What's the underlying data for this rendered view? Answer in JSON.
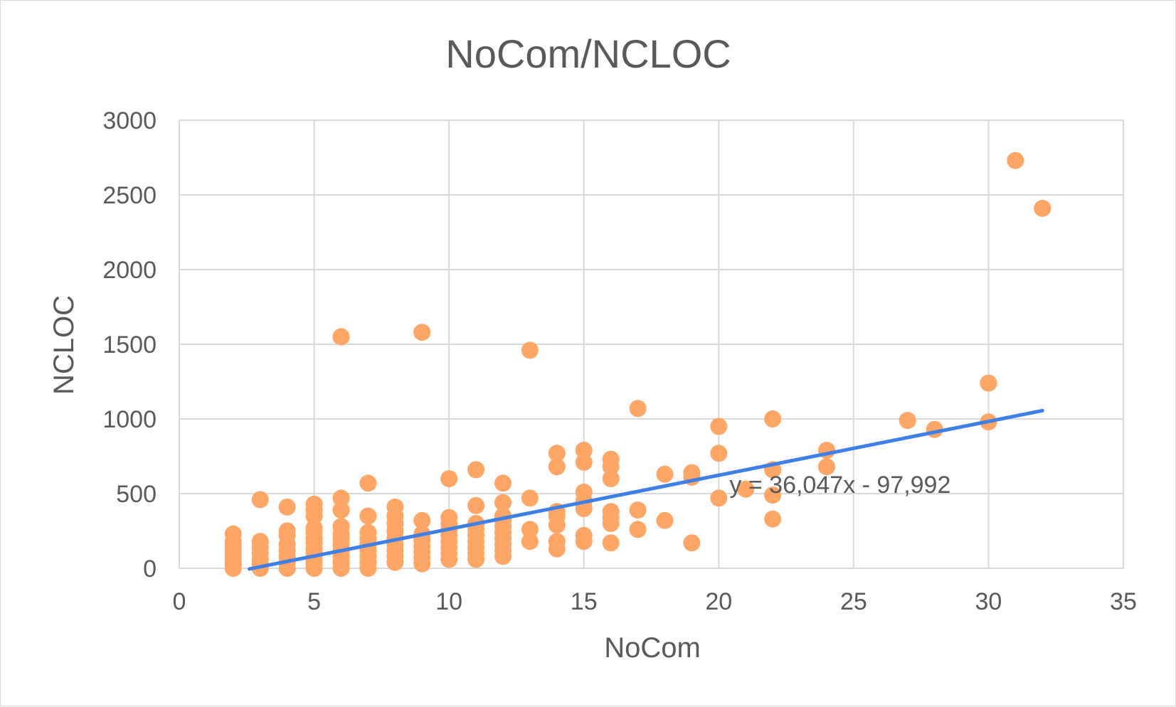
{
  "chart_data": {
    "type": "scatter",
    "title": "NoCom/NCLOC",
    "xlabel": "NoCom",
    "ylabel": "NCLOC",
    "xlim": [
      0,
      35
    ],
    "ylim": [
      0,
      3000
    ],
    "x_ticks": [
      "0",
      "5",
      "10",
      "15",
      "20",
      "25",
      "30",
      "35"
    ],
    "y_ticks": [
      "0",
      "500",
      "1000",
      "1500",
      "2000",
      "2500",
      "3000"
    ],
    "grid": true,
    "legend": "none",
    "colors": {
      "points": "#FFA565",
      "trendline": "#3F7FE8",
      "grid": "#D9D9D9",
      "text": "#595959"
    },
    "series": [
      {
        "points": [
          [
            2,
            0
          ],
          [
            2,
            20
          ],
          [
            2,
            40
          ],
          [
            2,
            60
          ],
          [
            2,
            80
          ],
          [
            2,
            100
          ],
          [
            2,
            120
          ],
          [
            2,
            150
          ],
          [
            2,
            180
          ],
          [
            2,
            230
          ],
          [
            3,
            0
          ],
          [
            3,
            30
          ],
          [
            3,
            60
          ],
          [
            3,
            100
          ],
          [
            3,
            140
          ],
          [
            3,
            180
          ],
          [
            3,
            460
          ],
          [
            4,
            0
          ],
          [
            4,
            40
          ],
          [
            4,
            80
          ],
          [
            4,
            120
          ],
          [
            4,
            160
          ],
          [
            4,
            220
          ],
          [
            4,
            250
          ],
          [
            4,
            410
          ],
          [
            5,
            0
          ],
          [
            5,
            30
          ],
          [
            5,
            60
          ],
          [
            5,
            100
          ],
          [
            5,
            130
          ],
          [
            5,
            170
          ],
          [
            5,
            200
          ],
          [
            5,
            240
          ],
          [
            5,
            270
          ],
          [
            5,
            350
          ],
          [
            5,
            390
          ],
          [
            5,
            430
          ],
          [
            6,
            0
          ],
          [
            6,
            40
          ],
          [
            6,
            80
          ],
          [
            6,
            120
          ],
          [
            6,
            160
          ],
          [
            6,
            200
          ],
          [
            6,
            230
          ],
          [
            6,
            280
          ],
          [
            6,
            390
          ],
          [
            6,
            470
          ],
          [
            6,
            1550
          ],
          [
            7,
            0
          ],
          [
            7,
            40
          ],
          [
            7,
            80
          ],
          [
            7,
            120
          ],
          [
            7,
            160
          ],
          [
            7,
            200
          ],
          [
            7,
            240
          ],
          [
            7,
            350
          ],
          [
            7,
            570
          ],
          [
            8,
            40
          ],
          [
            8,
            80
          ],
          [
            8,
            120
          ],
          [
            8,
            160
          ],
          [
            8,
            200
          ],
          [
            8,
            250
          ],
          [
            8,
            300
          ],
          [
            8,
            350
          ],
          [
            8,
            410
          ],
          [
            9,
            30
          ],
          [
            9,
            70
          ],
          [
            9,
            110
          ],
          [
            9,
            150
          ],
          [
            9,
            190
          ],
          [
            9,
            230
          ],
          [
            9,
            320
          ],
          [
            9,
            1580
          ],
          [
            10,
            60
          ],
          [
            10,
            100
          ],
          [
            10,
            140
          ],
          [
            10,
            180
          ],
          [
            10,
            220
          ],
          [
            10,
            260
          ],
          [
            10,
            300
          ],
          [
            10,
            340
          ],
          [
            10,
            600
          ],
          [
            11,
            60
          ],
          [
            11,
            100
          ],
          [
            11,
            140
          ],
          [
            11,
            180
          ],
          [
            11,
            220
          ],
          [
            11,
            260
          ],
          [
            11,
            300
          ],
          [
            11,
            420
          ],
          [
            11,
            660
          ],
          [
            12,
            80
          ],
          [
            12,
            120
          ],
          [
            12,
            160
          ],
          [
            12,
            200
          ],
          [
            12,
            240
          ],
          [
            12,
            280
          ],
          [
            12,
            320
          ],
          [
            12,
            350
          ],
          [
            12,
            440
          ],
          [
            12,
            570
          ],
          [
            13,
            180
          ],
          [
            13,
            260
          ],
          [
            13,
            470
          ],
          [
            13,
            1460
          ],
          [
            14,
            130
          ],
          [
            14,
            180
          ],
          [
            14,
            290
          ],
          [
            14,
            350
          ],
          [
            14,
            380
          ],
          [
            14,
            680
          ],
          [
            14,
            770
          ],
          [
            15,
            180
          ],
          [
            15,
            220
          ],
          [
            15,
            400
          ],
          [
            15,
            450
          ],
          [
            15,
            510
          ],
          [
            15,
            710
          ],
          [
            15,
            790
          ],
          [
            16,
            170
          ],
          [
            16,
            300
          ],
          [
            16,
            340
          ],
          [
            16,
            380
          ],
          [
            16,
            600
          ],
          [
            16,
            680
          ],
          [
            16,
            730
          ],
          [
            17,
            260
          ],
          [
            17,
            390
          ],
          [
            17,
            1070
          ],
          [
            18,
            320
          ],
          [
            18,
            630
          ],
          [
            19,
            170
          ],
          [
            19,
            610
          ],
          [
            19,
            640
          ],
          [
            20,
            470
          ],
          [
            20,
            770
          ],
          [
            20,
            950
          ],
          [
            21,
            530
          ],
          [
            22,
            330
          ],
          [
            22,
            490
          ],
          [
            22,
            660
          ],
          [
            22,
            1000
          ],
          [
            24,
            680
          ],
          [
            24,
            790
          ],
          [
            27,
            990
          ],
          [
            28,
            930
          ],
          [
            30,
            980
          ],
          [
            30,
            1240
          ],
          [
            31,
            2730
          ],
          [
            32,
            2410
          ]
        ]
      }
    ],
    "trendline": {
      "type": "linear",
      "slope": 36.047,
      "intercept": -97.992,
      "x_range": [
        2.6,
        32
      ],
      "equation_label": "y = 36,047x - 97,992"
    }
  }
}
